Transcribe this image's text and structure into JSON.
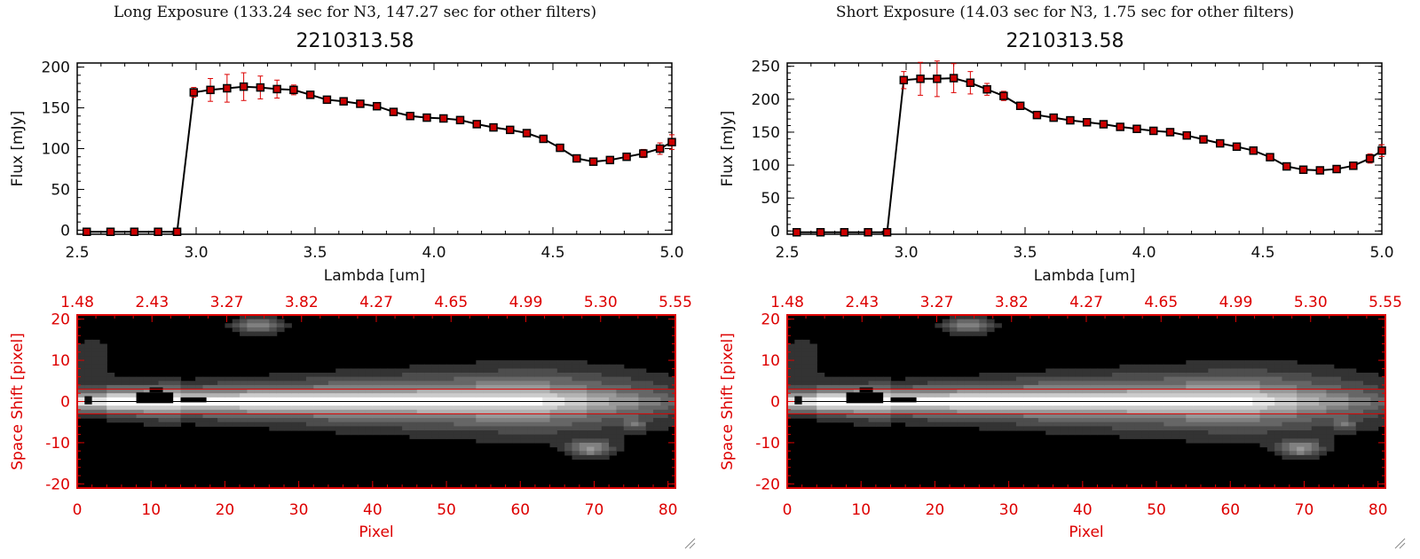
{
  "panels": [
    {
      "exposure_title": "Long Exposure (133.24 sec for N3, 147.27 sec for other filters)",
      "plot_title": "2210313.58"
    },
    {
      "exposure_title": "Short Exposure (14.03 sec for N3, 1.75 sec for other filters)",
      "plot_title": "2210313.58"
    }
  ],
  "colors": {
    "accent": "#dd0000",
    "line": "#000000",
    "marker": "#cc0000",
    "background": "#ffffff"
  },
  "icons": [
    "resize-grip-icon"
  ],
  "chart_data": [
    {
      "type": "line",
      "title": "2210313.58",
      "xlabel": "Lambda [um]",
      "ylabel": "Flux [mJy]",
      "xlim": [
        2.5,
        5.0
      ],
      "ylim": [
        -5,
        205
      ],
      "xticks": [
        "2.5",
        "3.0",
        "3.5",
        "4.0",
        "4.5",
        "5.0"
      ],
      "yticks": [
        "0",
        "50",
        "100",
        "150",
        "200"
      ],
      "yticks_values": [
        0,
        50,
        100,
        150,
        200
      ],
      "series": [
        {
          "x": [
            2.54,
            2.64,
            2.74,
            2.84,
            2.92,
            2.99,
            3.06,
            3.13,
            3.2,
            3.27,
            3.34,
            3.41,
            3.48,
            3.55,
            3.62,
            3.69,
            3.76,
            3.83,
            3.9,
            3.97,
            4.04,
            4.11,
            4.18,
            4.25,
            4.32,
            4.39,
            4.46,
            4.53,
            4.6,
            4.67,
            4.74,
            4.81,
            4.88,
            4.95,
            5.0
          ],
          "y": [
            -2,
            -2,
            -2,
            -2,
            -2,
            169,
            172,
            174,
            176,
            175,
            173,
            172,
            166,
            160,
            158,
            155,
            152,
            145,
            140,
            138,
            137,
            135,
            130,
            126,
            123,
            119,
            112,
            101,
            88,
            84,
            86,
            90,
            94,
            100,
            108
          ],
          "err": [
            0,
            0,
            0,
            0,
            0,
            6,
            14,
            17,
            17,
            14,
            11,
            6,
            4,
            3,
            3,
            3,
            3,
            3,
            3,
            3,
            3,
            3,
            3,
            3,
            3,
            3,
            3,
            3,
            3,
            3,
            3,
            4,
            5,
            7,
            9
          ]
        }
      ]
    },
    {
      "type": "heatmap",
      "xlabel": "Pixel",
      "ylabel": "Space Shift [pixel]",
      "xlim": [
        0,
        81
      ],
      "ylim": [
        -21,
        21
      ],
      "xticks": [
        "0",
        "10",
        "20",
        "30",
        "40",
        "50",
        "60",
        "70",
        "80"
      ],
      "yticks": [
        "-20",
        "-10",
        "0",
        "10",
        "20"
      ],
      "yticks_values": [
        -20,
        -10,
        0,
        10,
        20
      ],
      "top_axis_ticks": [
        "1.48",
        "2.43",
        "3.27",
        "3.82",
        "4.27",
        "4.65",
        "4.99",
        "5.30",
        "5.55"
      ],
      "aperture_lines": [
        3,
        -3
      ]
    },
    {
      "type": "line",
      "title": "2210313.58",
      "xlabel": "Lambda [um]",
      "ylabel": "Flux [mJy]",
      "xlim": [
        2.5,
        5.0
      ],
      "ylim": [
        -5,
        255
      ],
      "xticks": [
        "2.5",
        "3.0",
        "3.5",
        "4.0",
        "4.5",
        "5.0"
      ],
      "yticks": [
        "0",
        "50",
        "100",
        "150",
        "200",
        "250"
      ],
      "yticks_values": [
        0,
        50,
        100,
        150,
        200,
        250
      ],
      "series": [
        {
          "x": [
            2.54,
            2.64,
            2.74,
            2.84,
            2.92,
            2.99,
            3.06,
            3.13,
            3.2,
            3.27,
            3.34,
            3.41,
            3.48,
            3.55,
            3.62,
            3.69,
            3.76,
            3.83,
            3.9,
            3.97,
            4.04,
            4.11,
            4.18,
            4.25,
            4.32,
            4.39,
            4.46,
            4.53,
            4.6,
            4.67,
            4.74,
            4.81,
            4.88,
            4.95,
            5.0
          ],
          "y": [
            -2,
            -2,
            -2,
            -2,
            -2,
            229,
            231,
            231,
            232,
            225,
            215,
            205,
            190,
            176,
            172,
            168,
            165,
            162,
            158,
            155,
            152,
            150,
            145,
            139,
            133,
            128,
            122,
            112,
            98,
            93,
            92,
            94,
            99,
            110,
            122
          ],
          "err": [
            0,
            0,
            0,
            0,
            0,
            13,
            25,
            27,
            22,
            17,
            9,
            7,
            5,
            4,
            3,
            3,
            3,
            3,
            3,
            3,
            3,
            3,
            3,
            3,
            3,
            3,
            3,
            3,
            3,
            3,
            3,
            4,
            5,
            7,
            9
          ]
        }
      ]
    },
    {
      "type": "heatmap",
      "xlabel": "Pixel",
      "ylabel": "Space Shift [pixel]",
      "xlim": [
        0,
        81
      ],
      "ylim": [
        -21,
        21
      ],
      "xticks": [
        "0",
        "10",
        "20",
        "30",
        "40",
        "50",
        "60",
        "70",
        "80"
      ],
      "yticks": [
        "-20",
        "-10",
        "0",
        "10",
        "20"
      ],
      "yticks_values": [
        -20,
        -10,
        0,
        10,
        20
      ],
      "top_axis_ticks": [
        "1.48",
        "2.43",
        "3.27",
        "3.82",
        "4.27",
        "4.65",
        "4.99",
        "5.30",
        "5.55"
      ],
      "aperture_lines": [
        3,
        -3
      ]
    }
  ]
}
